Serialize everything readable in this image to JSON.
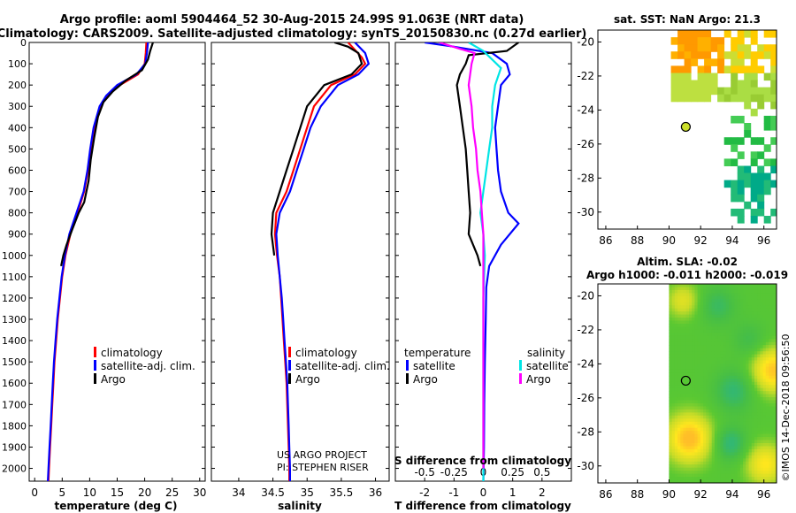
{
  "title_line1": "Argo profile: aoml 5904464_52 30-Aug-2015 24.99S 91.063E (NRT data)",
  "title_line2": "Climatology: CARS2009. Satellite-adjusted climatology: synTS_20150830.nc (0.27d earlier)",
  "side_text": "©IMOS 14-Dec-2018 09:56:50",
  "project_lines": [
    "US ARGO PROJECT",
    "PI: STEPHEN RISER"
  ],
  "colors": {
    "climatology": "#ff0000",
    "satellite": "#0000ff",
    "argo": "#000000",
    "sal_satellite": "#00e5e5",
    "sal_argo": "#ff00ff"
  },
  "chart_data": [
    {
      "id": "temperature",
      "type": "line",
      "xlabel": "temperature (deg C)",
      "xlim": [
        -1,
        31
      ],
      "xticks": [
        0,
        5,
        10,
        15,
        20,
        25,
        30
      ],
      "ylim": [
        0,
        2060
      ],
      "yticks": [
        0,
        100,
        200,
        300,
        400,
        500,
        600,
        700,
        800,
        900,
        1000,
        1100,
        1200,
        1300,
        1400,
        1500,
        1600,
        1700,
        1800,
        1900,
        2000
      ],
      "legend": [
        "climatology",
        "satellite-adj. clim.",
        "Argo"
      ],
      "series": [
        {
          "name": "climatology",
          "color": "#ff0000",
          "points": [
            [
              20.3,
              0
            ],
            [
              20.2,
              50
            ],
            [
              20.0,
              100
            ],
            [
              18.8,
              150
            ],
            [
              15.5,
              200
            ],
            [
              13.2,
              250
            ],
            [
              12.0,
              300
            ],
            [
              11.0,
              400
            ],
            [
              10.3,
              500
            ],
            [
              9.7,
              600
            ],
            [
              9.0,
              700
            ],
            [
              7.8,
              800
            ],
            [
              6.5,
              900
            ],
            [
              5.6,
              1000
            ],
            [
              5.0,
              1100
            ],
            [
              4.6,
              1200
            ],
            [
              4.2,
              1300
            ],
            [
              3.9,
              1400
            ],
            [
              3.6,
              1500
            ],
            [
              3.4,
              1600
            ],
            [
              3.2,
              1700
            ],
            [
              3.0,
              1800
            ],
            [
              2.8,
              1900
            ],
            [
              2.6,
              2000
            ],
            [
              2.5,
              2060
            ]
          ]
        },
        {
          "name": "satellite-adj. clim.",
          "color": "#0000ff",
          "points": [
            [
              20.6,
              0
            ],
            [
              20.4,
              50
            ],
            [
              20.1,
              100
            ],
            [
              18.5,
              150
            ],
            [
              15.0,
              200
            ],
            [
              13.0,
              250
            ],
            [
              11.8,
              300
            ],
            [
              10.7,
              400
            ],
            [
              10.1,
              500
            ],
            [
              9.6,
              600
            ],
            [
              8.9,
              700
            ],
            [
              7.6,
              800
            ],
            [
              6.3,
              900
            ],
            [
              5.5,
              1000
            ],
            [
              4.9,
              1100
            ],
            [
              4.5,
              1200
            ],
            [
              4.1,
              1300
            ],
            [
              3.8,
              1400
            ],
            [
              3.5,
              1500
            ],
            [
              3.3,
              1600
            ],
            [
              3.1,
              1700
            ],
            [
              2.9,
              1800
            ],
            [
              2.7,
              1900
            ],
            [
              2.5,
              2000
            ],
            [
              2.4,
              2060
            ]
          ]
        },
        {
          "name": "Argo",
          "color": "#000000",
          "points": [
            [
              21.5,
              0
            ],
            [
              21.0,
              40
            ],
            [
              20.6,
              80
            ],
            [
              19.5,
              130
            ],
            [
              16.5,
              180
            ],
            [
              14.2,
              230
            ],
            [
              12.5,
              280
            ],
            [
              11.5,
              350
            ],
            [
              10.8,
              450
            ],
            [
              10.2,
              550
            ],
            [
              9.8,
              650
            ],
            [
              9.0,
              750
            ],
            [
              8.0,
              800
            ],
            [
              6.8,
              880
            ],
            [
              5.8,
              950
            ],
            [
              5.2,
              1000
            ],
            [
              4.8,
              1050
            ]
          ]
        }
      ]
    },
    {
      "id": "salinity",
      "type": "line",
      "xlabel": "salinity",
      "xlim": [
        33.6,
        36.2
      ],
      "xticks": [
        34,
        34.5,
        35,
        35.5,
        36
      ],
      "xtick_labels": [
        "34",
        "34.5",
        "35",
        "35.5",
        "36"
      ],
      "ylim": [
        0,
        2060
      ],
      "legend": [
        "climatology",
        "satellite-adj. clim.",
        "Argo"
      ],
      "series": [
        {
          "name": "climatology",
          "color": "#ff0000",
          "points": [
            [
              35.6,
              0
            ],
            [
              35.8,
              70
            ],
            [
              35.85,
              100
            ],
            [
              35.7,
              150
            ],
            [
              35.35,
              200
            ],
            [
              35.1,
              300
            ],
            [
              35.0,
              400
            ],
            [
              34.9,
              500
            ],
            [
              34.8,
              600
            ],
            [
              34.7,
              700
            ],
            [
              34.55,
              800
            ],
            [
              34.53,
              900
            ],
            [
              34.56,
              1000
            ],
            [
              34.6,
              1100
            ],
            [
              34.62,
              1200
            ],
            [
              34.64,
              1300
            ],
            [
              34.66,
              1400
            ],
            [
              34.68,
              1500
            ],
            [
              34.7,
              1600
            ],
            [
              34.71,
              1700
            ],
            [
              34.72,
              1800
            ],
            [
              34.73,
              1900
            ],
            [
              34.74,
              2000
            ],
            [
              34.74,
              2060
            ]
          ]
        },
        {
          "name": "satellite-adj. clim.",
          "color": "#0000ff",
          "points": [
            [
              35.7,
              0
            ],
            [
              35.85,
              50
            ],
            [
              35.9,
              100
            ],
            [
              35.75,
              150
            ],
            [
              35.45,
              200
            ],
            [
              35.2,
              300
            ],
            [
              35.05,
              400
            ],
            [
              34.95,
              500
            ],
            [
              34.85,
              600
            ],
            [
              34.75,
              700
            ],
            [
              34.6,
              800
            ],
            [
              34.55,
              900
            ],
            [
              34.57,
              1000
            ],
            [
              34.6,
              1100
            ],
            [
              34.63,
              1200
            ],
            [
              34.65,
              1300
            ],
            [
              34.67,
              1400
            ],
            [
              34.69,
              1500
            ],
            [
              34.71,
              1600
            ],
            [
              34.72,
              1700
            ],
            [
              34.73,
              1800
            ],
            [
              34.74,
              1900
            ],
            [
              34.75,
              2000
            ],
            [
              34.75,
              2060
            ]
          ]
        },
        {
          "name": "Argo",
          "color": "#000000",
          "points": [
            [
              35.4,
              0
            ],
            [
              35.6,
              20
            ],
            [
              35.75,
              50
            ],
            [
              35.8,
              100
            ],
            [
              35.65,
              150
            ],
            [
              35.25,
              200
            ],
            [
              35.0,
              300
            ],
            [
              34.9,
              400
            ],
            [
              34.8,
              500
            ],
            [
              34.7,
              600
            ],
            [
              34.6,
              700
            ],
            [
              34.5,
              800
            ],
            [
              34.48,
              900
            ],
            [
              34.52,
              1000
            ]
          ]
        }
      ]
    },
    {
      "id": "difference",
      "type": "line",
      "xlabel": "T difference from climatology",
      "xlabel2": "S difference from climatology",
      "xlim": [
        -3,
        3
      ],
      "xticks": [
        -2,
        -1,
        0,
        1,
        2
      ],
      "xticks2": [
        -0.5,
        -0.25,
        0,
        0.25,
        0.5
      ],
      "xtick2_labels": [
        "-0.5",
        "-0.25",
        "0",
        "0.25",
        "0.5"
      ],
      "ylim": [
        0,
        2060
      ],
      "legend_temperature_title": "temperature",
      "legend_temperature": [
        "satellite",
        "Argo"
      ],
      "legend_salinity_title": "salinity",
      "legend_salinity": [
        "satellite",
        "Argo"
      ],
      "series": [
        {
          "name": "T satellite",
          "color": "#0000ff",
          "points": [
            [
              -2.0,
              0
            ],
            [
              -1.0,
              20
            ],
            [
              0.3,
              50
            ],
            [
              0.8,
              100
            ],
            [
              0.9,
              150
            ],
            [
              0.6,
              200
            ],
            [
              0.5,
              300
            ],
            [
              0.4,
              400
            ],
            [
              0.45,
              500
            ],
            [
              0.5,
              600
            ],
            [
              0.6,
              700
            ],
            [
              0.85,
              800
            ],
            [
              1.2,
              850
            ],
            [
              0.6,
              950
            ],
            [
              0.2,
              1050
            ],
            [
              0.1,
              1150
            ],
            [
              0.08,
              1300
            ],
            [
              0.05,
              1500
            ],
            [
              0.03,
              1700
            ],
            [
              0.02,
              1900
            ],
            [
              0.0,
              2060
            ]
          ]
        },
        {
          "name": "T Argo",
          "color": "#000000",
          "points": [
            [
              1.2,
              0
            ],
            [
              0.8,
              40
            ],
            [
              -0.5,
              60
            ],
            [
              -0.6,
              100
            ],
            [
              -0.8,
              150
            ],
            [
              -0.9,
              200
            ],
            [
              -0.8,
              300
            ],
            [
              -0.7,
              400
            ],
            [
              -0.6,
              500
            ],
            [
              -0.55,
              600
            ],
            [
              -0.5,
              700
            ],
            [
              -0.45,
              800
            ],
            [
              -0.5,
              900
            ],
            [
              -0.2,
              1000
            ],
            [
              -0.1,
              1050
            ]
          ]
        },
        {
          "name": "S satellite",
          "color": "#00e5e5",
          "points": [
            [
              -0.5,
              0
            ],
            [
              0.0,
              40
            ],
            [
              0.3,
              80
            ],
            [
              0.6,
              120
            ],
            [
              0.4,
              200
            ],
            [
              0.3,
              300
            ],
            [
              0.3,
              400
            ],
            [
              0.2,
              500
            ],
            [
              0.1,
              600
            ],
            [
              0.0,
              700
            ],
            [
              -0.1,
              800
            ],
            [
              0.0,
              900
            ],
            [
              0.05,
              1000
            ],
            [
              0.0,
              1200
            ],
            [
              0.0,
              1500
            ],
            [
              0.0,
              2060
            ]
          ]
        },
        {
          "name": "S Argo",
          "color": "#ff00ff",
          "points": [
            [
              -1.5,
              0
            ],
            [
              -0.8,
              30
            ],
            [
              -0.3,
              50
            ],
            [
              -0.4,
              100
            ],
            [
              -0.5,
              200
            ],
            [
              -0.4,
              300
            ],
            [
              -0.35,
              400
            ],
            [
              -0.25,
              500
            ],
            [
              -0.2,
              600
            ],
            [
              -0.1,
              700
            ],
            [
              -0.05,
              800
            ],
            [
              0.0,
              900
            ],
            [
              0.0,
              1100
            ],
            [
              0.0,
              1500
            ],
            [
              0.0,
              2000
            ]
          ]
        }
      ]
    },
    {
      "id": "sst_map",
      "type": "heatmap",
      "title": "sat. SST: NaN Argo: 21.3",
      "xlim": [
        85.5,
        96.8
      ],
      "ylim": [
        -31,
        -19.3
      ],
      "xticks": [
        86,
        88,
        90,
        92,
        94,
        96
      ],
      "yticks": [
        -20,
        -22,
        -24,
        -26,
        -28,
        -30
      ],
      "argo_position": [
        91.06,
        -24.99
      ]
    },
    {
      "id": "sla_map",
      "type": "heatmap",
      "title_line1": "Altim. SLA: -0.02",
      "title_line2": "Argo h1000: -0.011 h2000: -0.019",
      "xlim": [
        85.5,
        96.8
      ],
      "ylim": [
        -31,
        -19.3
      ],
      "xticks": [
        86,
        88,
        90,
        92,
        94,
        96
      ],
      "yticks": [
        -20,
        -22,
        -24,
        -26,
        -28,
        -30
      ],
      "data_start_lon": 90,
      "argo_position": [
        91.06,
        -24.99
      ]
    }
  ]
}
